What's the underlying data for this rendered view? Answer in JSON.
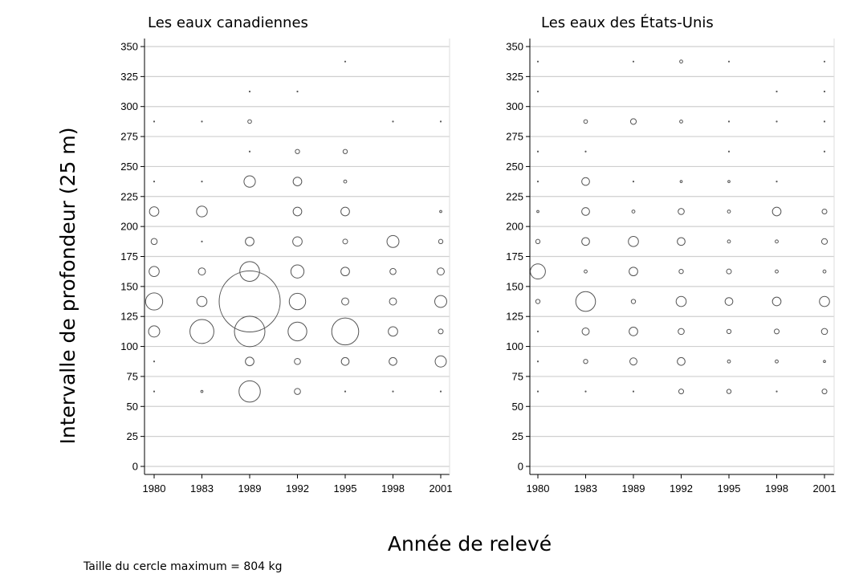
{
  "chart_data": {
    "type": "scatter",
    "xlabel": "Année de relevé",
    "ylabel": "Intervalle de  profondeur (25 m)",
    "note": "Taille du cercle maximum = 804 kg",
    "max_value_kg": 804,
    "x_categories": [
      "1980",
      "1983",
      "1989",
      "1992",
      "1995",
      "1998",
      "2001"
    ],
    "y_ticks": [
      0,
      25,
      50,
      75,
      100,
      125,
      150,
      175,
      200,
      225,
      250,
      275,
      300,
      325,
      350
    ],
    "ylim": [
      0,
      350
    ],
    "grid": true,
    "panels": [
      {
        "title": "Les eaux canadiennes",
        "points": [
          {
            "x": "1980",
            "y": 287.5,
            "kg": 0
          },
          {
            "x": "1983",
            "y": 287.5,
            "kg": 0
          },
          {
            "x": "1989",
            "y": 287.5,
            "kg": 3
          },
          {
            "x": "1998",
            "y": 287.5,
            "kg": 0
          },
          {
            "x": "2001",
            "y": 287.5,
            "kg": 0
          },
          {
            "x": "1995",
            "y": 337.5,
            "kg": 0
          },
          {
            "x": "1989",
            "y": 312.5,
            "kg": 0
          },
          {
            "x": "1992",
            "y": 312.5,
            "kg": 0
          },
          {
            "x": "1989",
            "y": 262.5,
            "kg": 0
          },
          {
            "x": "1992",
            "y": 262.5,
            "kg": 4
          },
          {
            "x": "1995",
            "y": 262.5,
            "kg": 4
          },
          {
            "x": "1980",
            "y": 237.5,
            "kg": 0
          },
          {
            "x": "1983",
            "y": 237.5,
            "kg": 0
          },
          {
            "x": "1989",
            "y": 237.5,
            "kg": 28
          },
          {
            "x": "1992",
            "y": 237.5,
            "kg": 16
          },
          {
            "x": "1995",
            "y": 237.5,
            "kg": 2
          },
          {
            "x": "1980",
            "y": 212.5,
            "kg": 19
          },
          {
            "x": "1983",
            "y": 212.5,
            "kg": 25
          },
          {
            "x": "1992",
            "y": 212.5,
            "kg": 16
          },
          {
            "x": "1995",
            "y": 212.5,
            "kg": 16
          },
          {
            "x": "2001",
            "y": 212.5,
            "kg": 1
          },
          {
            "x": "1980",
            "y": 187.5,
            "kg": 8
          },
          {
            "x": "1983",
            "y": 187.5,
            "kg": 0
          },
          {
            "x": "1989",
            "y": 187.5,
            "kg": 16
          },
          {
            "x": "1992",
            "y": 187.5,
            "kg": 19
          },
          {
            "x": "1995",
            "y": 187.5,
            "kg": 5
          },
          {
            "x": "1998",
            "y": 187.5,
            "kg": 31
          },
          {
            "x": "2001",
            "y": 187.5,
            "kg": 4
          },
          {
            "x": "1980",
            "y": 162.5,
            "kg": 22
          },
          {
            "x": "1983",
            "y": 162.5,
            "kg": 11
          },
          {
            "x": "1989",
            "y": 162.5,
            "kg": 84
          },
          {
            "x": "1992",
            "y": 162.5,
            "kg": 37
          },
          {
            "x": "1995",
            "y": 162.5,
            "kg": 16
          },
          {
            "x": "1998",
            "y": 162.5,
            "kg": 8
          },
          {
            "x": "2001",
            "y": 162.5,
            "kg": 11
          },
          {
            "x": "1980",
            "y": 137.5,
            "kg": 63
          },
          {
            "x": "1983",
            "y": 137.5,
            "kg": 22
          },
          {
            "x": "1989",
            "y": 137.5,
            "kg": 804
          },
          {
            "x": "1992",
            "y": 137.5,
            "kg": 58
          },
          {
            "x": "1995",
            "y": 137.5,
            "kg": 11
          },
          {
            "x": "1998",
            "y": 137.5,
            "kg": 11
          },
          {
            "x": "2001",
            "y": 137.5,
            "kg": 31
          },
          {
            "x": "1980",
            "y": 112.5,
            "kg": 27
          },
          {
            "x": "1983",
            "y": 112.5,
            "kg": 124
          },
          {
            "x": "1989",
            "y": 112.5,
            "kg": 201
          },
          {
            "x": "1992",
            "y": 112.5,
            "kg": 76
          },
          {
            "x": "1995",
            "y": 112.5,
            "kg": 157
          },
          {
            "x": "1998",
            "y": 112.5,
            "kg": 19
          },
          {
            "x": "2001",
            "y": 112.5,
            "kg": 5
          },
          {
            "x": "1980",
            "y": 87.5,
            "kg": 0
          },
          {
            "x": "1989",
            "y": 87.5,
            "kg": 16
          },
          {
            "x": "1992",
            "y": 87.5,
            "kg": 8
          },
          {
            "x": "1995",
            "y": 87.5,
            "kg": 13
          },
          {
            "x": "1998",
            "y": 87.5,
            "kg": 13
          },
          {
            "x": "2001",
            "y": 87.5,
            "kg": 27
          },
          {
            "x": "1980",
            "y": 62.5,
            "kg": 0
          },
          {
            "x": "1983",
            "y": 62.5,
            "kg": 1
          },
          {
            "x": "1989",
            "y": 62.5,
            "kg": 98
          },
          {
            "x": "1992",
            "y": 62.5,
            "kg": 8
          },
          {
            "x": "1995",
            "y": 62.5,
            "kg": 0
          },
          {
            "x": "1998",
            "y": 62.5,
            "kg": 0
          },
          {
            "x": "2001",
            "y": 62.5,
            "kg": 0
          }
        ]
      },
      {
        "title": "Les eaux des États-Unis",
        "points": [
          {
            "x": "1980",
            "y": 337.5,
            "kg": 0
          },
          {
            "x": "1989",
            "y": 337.5,
            "kg": 0
          },
          {
            "x": "1992",
            "y": 337.5,
            "kg": 2
          },
          {
            "x": "1995",
            "y": 337.5,
            "kg": 0
          },
          {
            "x": "2001",
            "y": 337.5,
            "kg": 0
          },
          {
            "x": "1980",
            "y": 312.5,
            "kg": 0
          },
          {
            "x": "1998",
            "y": 312.5,
            "kg": 0
          },
          {
            "x": "2001",
            "y": 312.5,
            "kg": 0
          },
          {
            "x": "1983",
            "y": 287.5,
            "kg": 3
          },
          {
            "x": "1989",
            "y": 287.5,
            "kg": 7
          },
          {
            "x": "1992",
            "y": 287.5,
            "kg": 2
          },
          {
            "x": "1995",
            "y": 287.5,
            "kg": 0
          },
          {
            "x": "1998",
            "y": 287.5,
            "kg": 0
          },
          {
            "x": "2001",
            "y": 287.5,
            "kg": 0
          },
          {
            "x": "1980",
            "y": 262.5,
            "kg": 0
          },
          {
            "x": "1983",
            "y": 262.5,
            "kg": 0
          },
          {
            "x": "1995",
            "y": 262.5,
            "kg": 0
          },
          {
            "x": "2001",
            "y": 262.5,
            "kg": 0
          },
          {
            "x": "1980",
            "y": 237.5,
            "kg": 0
          },
          {
            "x": "1983",
            "y": 237.5,
            "kg": 13
          },
          {
            "x": "1989",
            "y": 237.5,
            "kg": 0
          },
          {
            "x": "1992",
            "y": 237.5,
            "kg": 1
          },
          {
            "x": "1995",
            "y": 237.5,
            "kg": 1
          },
          {
            "x": "1998",
            "y": 237.5,
            "kg": 0
          },
          {
            "x": "1980",
            "y": 212.5,
            "kg": 1
          },
          {
            "x": "1983",
            "y": 212.5,
            "kg": 13
          },
          {
            "x": "1989",
            "y": 212.5,
            "kg": 2
          },
          {
            "x": "1992",
            "y": 212.5,
            "kg": 8
          },
          {
            "x": "1995",
            "y": 212.5,
            "kg": 2
          },
          {
            "x": "1998",
            "y": 212.5,
            "kg": 16
          },
          {
            "x": "2001",
            "y": 212.5,
            "kg": 5
          },
          {
            "x": "1980",
            "y": 187.5,
            "kg": 4
          },
          {
            "x": "1983",
            "y": 187.5,
            "kg": 13
          },
          {
            "x": "1989",
            "y": 187.5,
            "kg": 22
          },
          {
            "x": "1992",
            "y": 187.5,
            "kg": 13
          },
          {
            "x": "1995",
            "y": 187.5,
            "kg": 2
          },
          {
            "x": "1998",
            "y": 187.5,
            "kg": 2
          },
          {
            "x": "2001",
            "y": 187.5,
            "kg": 7
          },
          {
            "x": "1980",
            "y": 162.5,
            "kg": 49
          },
          {
            "x": "1983",
            "y": 162.5,
            "kg": 2
          },
          {
            "x": "1989",
            "y": 162.5,
            "kg": 16
          },
          {
            "x": "1992",
            "y": 162.5,
            "kg": 4
          },
          {
            "x": "1995",
            "y": 162.5,
            "kg": 5
          },
          {
            "x": "1998",
            "y": 162.5,
            "kg": 2
          },
          {
            "x": "2001",
            "y": 162.5,
            "kg": 2
          },
          {
            "x": "1980",
            "y": 137.5,
            "kg": 4
          },
          {
            "x": "1983",
            "y": 137.5,
            "kg": 84
          },
          {
            "x": "1989",
            "y": 137.5,
            "kg": 4
          },
          {
            "x": "1992",
            "y": 137.5,
            "kg": 22
          },
          {
            "x": "1995",
            "y": 137.5,
            "kg": 13
          },
          {
            "x": "1998",
            "y": 137.5,
            "kg": 16
          },
          {
            "x": "2001",
            "y": 137.5,
            "kg": 22
          },
          {
            "x": "1980",
            "y": 112.5,
            "kg": 0
          },
          {
            "x": "1983",
            "y": 112.5,
            "kg": 11
          },
          {
            "x": "1989",
            "y": 112.5,
            "kg": 16
          },
          {
            "x": "1992",
            "y": 112.5,
            "kg": 8
          },
          {
            "x": "1995",
            "y": 112.5,
            "kg": 4
          },
          {
            "x": "1998",
            "y": 112.5,
            "kg": 5
          },
          {
            "x": "2001",
            "y": 112.5,
            "kg": 8
          },
          {
            "x": "1980",
            "y": 87.5,
            "kg": 0
          },
          {
            "x": "1983",
            "y": 87.5,
            "kg": 4
          },
          {
            "x": "1989",
            "y": 87.5,
            "kg": 11
          },
          {
            "x": "1992",
            "y": 87.5,
            "kg": 13
          },
          {
            "x": "1995",
            "y": 87.5,
            "kg": 2
          },
          {
            "x": "1998",
            "y": 87.5,
            "kg": 2
          },
          {
            "x": "2001",
            "y": 87.5,
            "kg": 1
          },
          {
            "x": "1980",
            "y": 62.5,
            "kg": 0
          },
          {
            "x": "1983",
            "y": 62.5,
            "kg": 0
          },
          {
            "x": "1989",
            "y": 62.5,
            "kg": 0
          },
          {
            "x": "1992",
            "y": 62.5,
            "kg": 5
          },
          {
            "x": "1995",
            "y": 62.5,
            "kg": 4
          },
          {
            "x": "1998",
            "y": 62.5,
            "kg": 0
          },
          {
            "x": "2001",
            "y": 62.5,
            "kg": 5
          }
        ]
      }
    ]
  }
}
